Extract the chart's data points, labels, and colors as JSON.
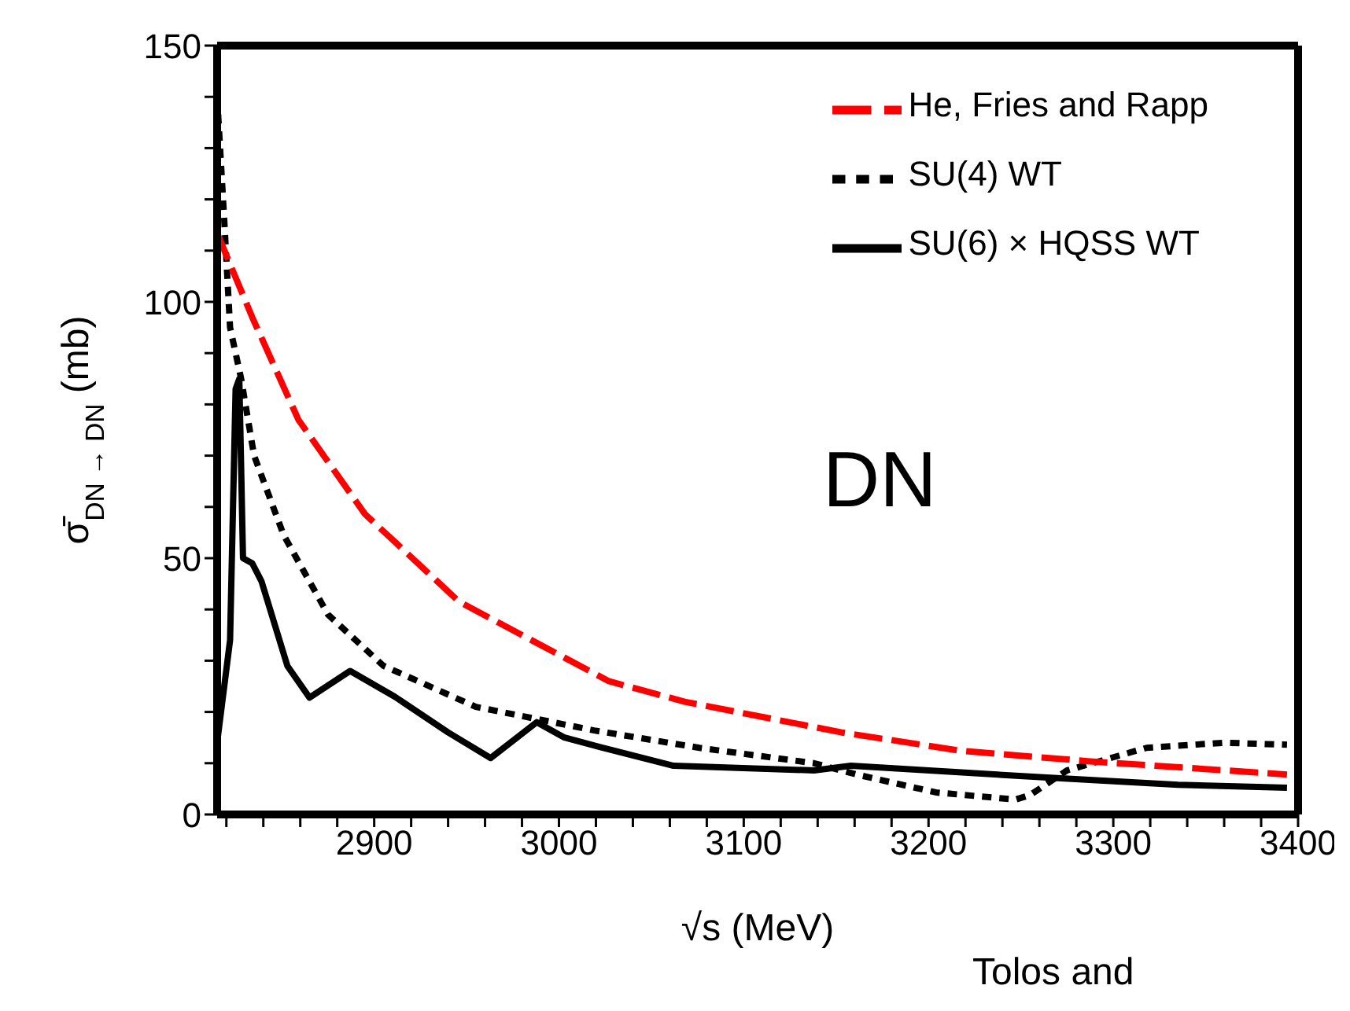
{
  "chart_data": {
    "type": "line",
    "xlabel": "√s (MeV)",
    "ylabel": "σ̄$_{DN → DN}$ (mb)",
    "xlim": [
      2815,
      3400
    ],
    "ylim": [
      0,
      150
    ],
    "xticks": [
      {
        "value": 2820,
        "label": null
      },
      {
        "value": 2840,
        "label": null
      },
      {
        "value": 2860,
        "label": null
      },
      {
        "value": 2880,
        "label": null
      },
      2900,
      {
        "value": 2920,
        "label": null
      },
      {
        "value": 2940,
        "label": null
      },
      {
        "value": 2960,
        "label": null
      },
      {
        "value": 2980,
        "label": null
      },
      3000,
      {
        "value": 3020,
        "label": null
      },
      {
        "value": 3040,
        "label": null
      },
      {
        "value": 3060,
        "label": null
      },
      {
        "value": 3080,
        "label": null
      },
      3100,
      {
        "value": 3120,
        "label": null
      },
      {
        "value": 3140,
        "label": null
      },
      {
        "value": 3160,
        "label": null
      },
      {
        "value": 3180,
        "label": null
      },
      3200,
      {
        "value": 3220,
        "label": null
      },
      {
        "value": 3240,
        "label": null
      },
      {
        "value": 3260,
        "label": null
      },
      {
        "value": 3280,
        "label": null
      },
      3300,
      {
        "value": 3320,
        "label": null
      },
      {
        "value": 3340,
        "label": null
      },
      {
        "value": 3360,
        "label": null
      },
      {
        "value": 3380,
        "label": null
      },
      3400
    ],
    "yticks": [
      0,
      {
        "value": 10,
        "label": null
      },
      {
        "value": 20,
        "label": null
      },
      {
        "value": 30,
        "label": null
      },
      {
        "value": 40,
        "label": null
      },
      50,
      {
        "value": 60,
        "label": null
      },
      {
        "value": 70,
        "label": null
      },
      {
        "value": 80,
        "label": null
      },
      {
        "value": 90,
        "label": null
      },
      100,
      {
        "value": 110,
        "label": null
      },
      {
        "value": 120,
        "label": null
      },
      {
        "value": 130,
        "label": null
      },
      {
        "value": 140,
        "label": null
      },
      150
    ],
    "grid": false,
    "legend": "top right",
    "marker": "none",
    "annotations": [
      "DN",
      "Tolos and"
    ],
    "series": [
      {
        "name": "SU(4) WT",
        "color": "#000000",
        "line_style": "dotted",
        "x": [
          2815,
          2819,
          2822,
          2828,
          2835,
          2851,
          2875,
          2905,
          2955,
          3019,
          3076,
          3138,
          3161,
          3204,
          3247,
          3255,
          3275,
          3318,
          3360,
          3394
        ],
        "values": [
          140,
          115,
          95,
          85,
          70,
          54.5,
          39,
          29,
          21,
          16.4,
          13,
          10,
          7.8,
          4.3,
          2.9,
          3.8,
          8.6,
          13,
          14,
          13.6
        ]
      },
      {
        "name": "SU(6) × HQSS WT",
        "color": "#000000",
        "line_style": "solid",
        "x": [
          2815,
          2822,
          2825,
          2827,
          2829,
          2834,
          2839,
          2853,
          2865,
          2887,
          2911,
          2940,
          2963,
          2988,
          3003,
          3027,
          3062,
          3138,
          3158,
          3264,
          3335,
          3394
        ],
        "values": [
          14,
          34,
          83,
          85,
          50,
          49,
          45.5,
          29,
          22.8,
          28,
          23,
          16,
          11,
          18,
          15,
          12.7,
          9.5,
          8.6,
          9.5,
          7.2,
          5.8,
          5.2
        ]
      },
      {
        "name": "He, Fries and Rapp",
        "color": "#ff0000",
        "line_style": "dashed",
        "x": [
          2815,
          2834,
          2859,
          2895,
          2946,
          3027,
          3068,
          3153,
          3218,
          3286,
          3394
        ],
        "values": [
          113.4,
          97,
          77,
          58.6,
          41.5,
          26,
          22,
          16,
          12.4,
          10.4,
          7.8
        ]
      }
    ]
  }
}
